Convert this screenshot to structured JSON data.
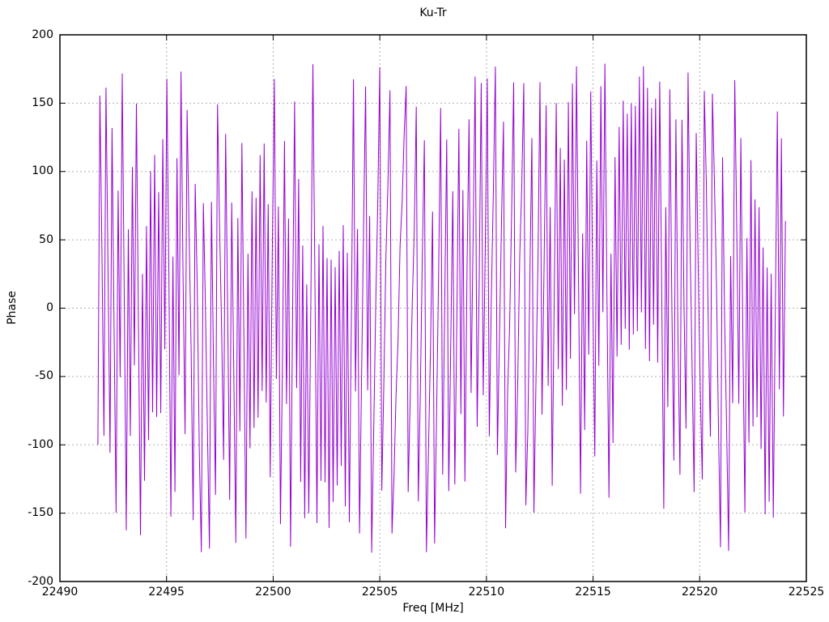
{
  "page": {
    "background": "#ffffff",
    "text_color": "#000000"
  },
  "chart_data": {
    "type": "line",
    "title": "Ku-Tr",
    "xlabel": "Freq [MHz]",
    "ylabel": "Phase",
    "xlim": [
      22490,
      22525
    ],
    "ylim": [
      -200,
      200
    ],
    "xticks": [
      22490,
      22495,
      22500,
      22505,
      22510,
      22515,
      22520,
      22525
    ],
    "yticks": [
      200,
      150,
      100,
      50,
      0,
      -50,
      -100,
      -150,
      -200
    ],
    "grid": true,
    "grid_style": "dotted",
    "grid_color": "#b0b0b0",
    "border_color": "#000000",
    "tick_length": 7,
    "legend_position": "none",
    "series": [
      {
        "name": "Phase",
        "color": "#9400D3",
        "line_width": 1,
        "x_start": 22491.78,
        "x_end": 22524.02,
        "n_points": 340,
        "wrap_range": [
          -180,
          180
        ],
        "description": "Densely wrapped phase-vs-frequency trace; phase wraps repeatedly between -180 and +180 degrees across the whole band, appearing as dense near-vertical violet strokes with varying envelope and occasional sparse bands",
        "synthesis": {
          "seed": 20240517,
          "phase0": -100,
          "delta_base_deg": 160,
          "slow_amp_deg": 70,
          "slow_period": 41,
          "slow_phase": 0.6,
          "fast_amp_deg": 45,
          "fast_period": 9.7,
          "fast_phase": 2.1,
          "noise_amp_deg": 28
        }
      }
    ]
  }
}
